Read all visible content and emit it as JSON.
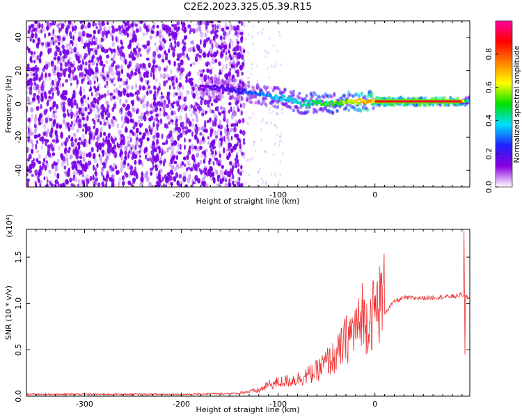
{
  "title": "C2E2.2023.325.05.39.R15",
  "chart_data": [
    {
      "type": "heatmap",
      "xlabel": "Height of straight line (km)",
      "ylabel": "Frequency (Hz)",
      "xlim": [
        -360,
        98
      ],
      "ylim": [
        -50,
        50
      ],
      "x_ticks": [
        -300,
        -200,
        -100,
        0
      ],
      "y_ticks": [
        -40,
        -20,
        0,
        20,
        40
      ],
      "colorbar": {
        "label": "Normalized spectral amplitude",
        "range": [
          0.0,
          1.0
        ],
        "ticks": [
          0.0,
          0.2,
          0.4,
          0.6,
          0.8
        ],
        "colormap": [
          "#ffffff",
          "#8a00e0",
          "#2020ff",
          "#00e0ff",
          "#00e000",
          "#ffff00",
          "#ff8000",
          "#ff0000",
          "#ff00a0"
        ]
      },
      "features": {
        "noise_region_x": [
          -360,
          -135
        ],
        "noise_color": "#7a00e6",
        "ridge": [
          {
            "x": -180,
            "y": 10,
            "amp": 0.15
          },
          {
            "x": -150,
            "y": 9,
            "amp": 0.2
          },
          {
            "x": -130,
            "y": 7,
            "amp": 0.3
          },
          {
            "x": -110,
            "y": 5,
            "amp": 0.35
          },
          {
            "x": -90,
            "y": 3,
            "amp": 0.4
          },
          {
            "x": -75,
            "y": 0,
            "amp": 0.45
          },
          {
            "x": -60,
            "y": 1,
            "amp": 0.5
          },
          {
            "x": -45,
            "y": 0,
            "amp": 0.55
          },
          {
            "x": -30,
            "y": 1,
            "amp": 0.6
          },
          {
            "x": -10,
            "y": 1.5,
            "amp": 0.75
          },
          {
            "x": 0,
            "y": 1.5,
            "amp": 0.8
          },
          {
            "x": 20,
            "y": 1.5,
            "amp": 0.9
          },
          {
            "x": 60,
            "y": 1.5,
            "amp": 0.95
          },
          {
            "x": 88,
            "y": 1.5,
            "amp": 0.9
          },
          {
            "x": 98,
            "y": 2,
            "amp": 0.3
          }
        ]
      }
    },
    {
      "type": "line",
      "xlabel": "Height of straight line (km)",
      "ylabel": "SNR (10 * v/v)",
      "y_multiplier": "(x10⁴)",
      "xlim": [
        -360,
        98
      ],
      "ylim": [
        0,
        1.8
      ],
      "x_ticks": [
        -300,
        -200,
        -100,
        0
      ],
      "y_ticks": [
        0.0,
        0.5,
        1.0,
        1.5
      ],
      "color": "#ee2b2b",
      "envelope": [
        {
          "x": -360,
          "y": 0.02
        },
        {
          "x": -200,
          "y": 0.02
        },
        {
          "x": -140,
          "y": 0.03
        },
        {
          "x": -120,
          "y": 0.05
        },
        {
          "x": -110,
          "y": 0.1
        },
        {
          "x": -100,
          "y": 0.12
        },
        {
          "x": -80,
          "y": 0.15
        },
        {
          "x": -60,
          "y": 0.22
        },
        {
          "x": -50,
          "y": 0.3
        },
        {
          "x": -40,
          "y": 0.35
        },
        {
          "x": -30,
          "y": 0.5
        },
        {
          "x": -20,
          "y": 0.6
        },
        {
          "x": -10,
          "y": 0.65
        },
        {
          "x": 0,
          "y": 0.75
        },
        {
          "x": 10,
          "y": 0.9
        },
        {
          "x": 20,
          "y": 1.02
        },
        {
          "x": 30,
          "y": 1.06
        },
        {
          "x": 50,
          "y": 1.06
        },
        {
          "x": 70,
          "y": 1.07
        },
        {
          "x": 85,
          "y": 1.08
        },
        {
          "x": 90,
          "y": 1.1
        },
        {
          "x": 98,
          "y": 1.05
        }
      ],
      "spikes": [
        {
          "x": -13,
          "y": 1.22
        },
        {
          "x": 92,
          "y": 1.78
        },
        {
          "x": 93,
          "y": 0.45
        }
      ]
    }
  ]
}
